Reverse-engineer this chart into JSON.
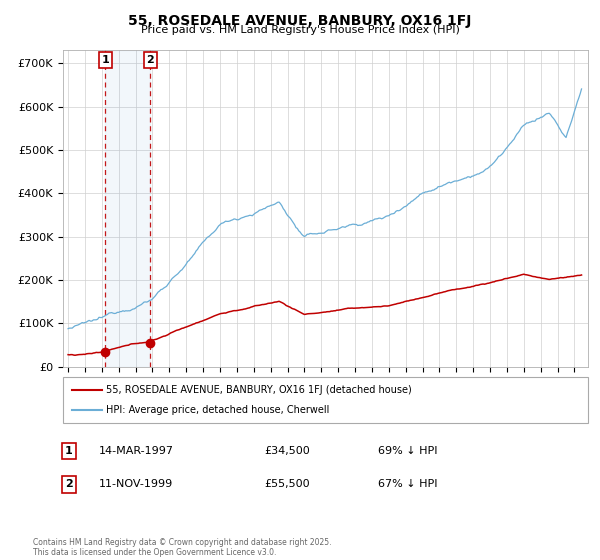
{
  "title": "55, ROSEDALE AVENUE, BANBURY, OX16 1FJ",
  "subtitle": "Price paid vs. HM Land Registry's House Price Index (HPI)",
  "ylabel_ticks": [
    "£0",
    "£100K",
    "£200K",
    "£300K",
    "£400K",
    "£500K",
    "£600K",
    "£700K"
  ],
  "ytick_values": [
    0,
    100000,
    200000,
    300000,
    400000,
    500000,
    600000,
    700000
  ],
  "ylim": [
    0,
    730000
  ],
  "hpi_color": "#6baed6",
  "price_color": "#c00000",
  "transaction1_date": 1997.2,
  "transaction1_price": 34500,
  "transaction2_date": 1999.87,
  "transaction2_price": 55500,
  "transaction1_label": "1",
  "transaction2_label": "2",
  "legend_line1": "55, ROSEDALE AVENUE, BANBURY, OX16 1FJ (detached house)",
  "legend_line2": "HPI: Average price, detached house, Cherwell",
  "footer": "Contains HM Land Registry data © Crown copyright and database right 2025.\nThis data is licensed under the Open Government Licence v3.0.",
  "table_row1_num": "1",
  "table_row1_date": "14-MAR-1997",
  "table_row1_price": "£34,500",
  "table_row1_hpi": "69% ↓ HPI",
  "table_row2_num": "2",
  "table_row2_date": "11-NOV-1999",
  "table_row2_price": "£55,500",
  "table_row2_hpi": "67% ↓ HPI",
  "xlim_start": 1994.7,
  "xlim_end": 2025.8
}
